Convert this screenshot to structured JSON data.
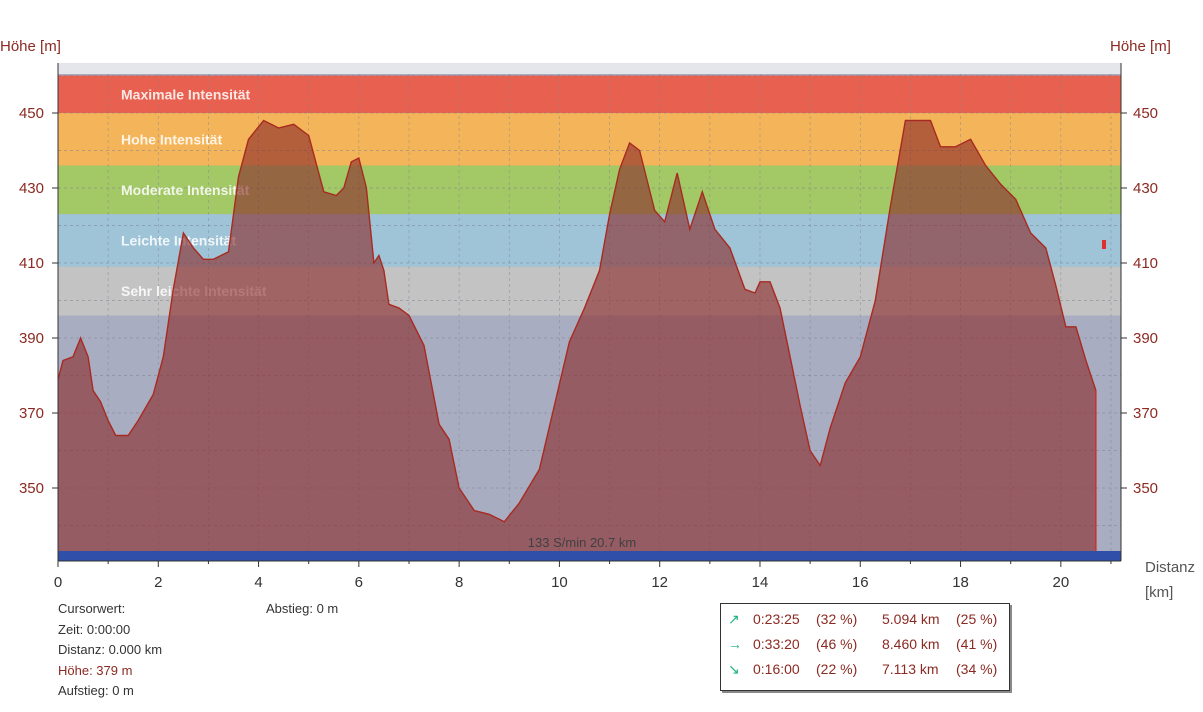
{
  "chart_data": {
    "type": "area",
    "ylabel_left": "Höhe [m]",
    "ylabel_right": "Höhe [m]",
    "xlabel": "Distanz",
    "xunit": "[km]",
    "xlim": [
      0,
      21.2
    ],
    "ylim": [
      332,
      462
    ],
    "x_ticks": [
      0,
      2,
      4,
      6,
      8,
      10,
      12,
      14,
      16,
      18,
      20
    ],
    "y_ticks": [
      350,
      370,
      390,
      410,
      430,
      450
    ],
    "grid": true,
    "zones": [
      {
        "name": "Maximale Intensität",
        "min": 450,
        "max": 460,
        "color": "#e8604f"
      },
      {
        "name": "Hohe Intensität",
        "min": 436,
        "max": 450,
        "color": "#f4b55a"
      },
      {
        "name": "Moderate Intensität",
        "min": 423,
        "max": 436,
        "color": "#a3c866"
      },
      {
        "name": "Leichte Intensität",
        "min": 409,
        "max": 423,
        "color": "#9fc4d8"
      },
      {
        "name": "Sehr leichte Intensität",
        "min": 396,
        "max": 409,
        "color": "#c3c3c3"
      }
    ],
    "series": [
      {
        "x": [
          0,
          0.1,
          0.3,
          0.45,
          0.6,
          0.7,
          0.85,
          1.0,
          1.15,
          1.4,
          1.6,
          1.9,
          2.1,
          2.3,
          2.5,
          2.7,
          2.9,
          3.1,
          3.4,
          3.6,
          3.8,
          4.1,
          4.4,
          4.7,
          5.0,
          5.3,
          5.55,
          5.7,
          5.85,
          6.0,
          6.15,
          6.3,
          6.4,
          6.5,
          6.6,
          6.8,
          7.0,
          7.3,
          7.6,
          7.8,
          8.0,
          8.3,
          8.6,
          8.9,
          9.2,
          9.6,
          9.9,
          10.2,
          10.5,
          10.8,
          11.0,
          11.2,
          11.4,
          11.6,
          11.9,
          12.1,
          12.35,
          12.6,
          12.85,
          13.1,
          13.4,
          13.7,
          13.9,
          14.0,
          14.2,
          14.4,
          14.6,
          14.8,
          15.0,
          15.2,
          15.4,
          15.7,
          16.0,
          16.3,
          16.6,
          16.9,
          17.1,
          17.4,
          17.6,
          17.9,
          18.2,
          18.5,
          18.8,
          19.1,
          19.4,
          19.7,
          19.9,
          20.1,
          20.3,
          20.5,
          20.7
        ],
        "y": [
          379,
          384,
          385,
          390,
          385,
          376,
          373,
          368,
          364,
          364,
          368,
          375,
          385,
          403,
          418,
          414,
          411,
          411,
          413,
          433,
          443,
          448,
          446,
          447,
          444,
          429,
          428,
          430,
          437,
          438,
          430,
          410,
          412,
          408,
          399,
          398,
          396,
          388,
          367,
          363,
          350,
          344,
          343,
          341,
          346,
          355,
          372,
          389,
          398,
          408,
          423,
          435,
          442,
          440,
          424,
          421,
          434,
          419,
          429,
          419,
          414,
          403,
          402,
          405,
          405,
          398,
          385,
          372,
          360,
          356,
          366,
          378,
          385,
          400,
          425,
          448,
          448,
          448,
          441,
          441,
          443,
          436,
          431,
          427,
          418,
          414,
          404,
          393,
          393,
          384,
          376
        ]
      }
    ],
    "cursor_label": "133 S/min 20.7 km",
    "colors": {
      "profile_fill": "#8b2a2a",
      "profile_line": "#a82a20",
      "plot_bg": "#a9adc2",
      "bottom_bar": "#2f4fa8",
      "axis_text": "#8b2a22"
    }
  },
  "info": {
    "cursor_label": "Cursorwert:",
    "time": "Zeit: 0:00:00",
    "distance": "Distanz: 0.000 km",
    "height": "Höhe: 379 m",
    "ascent": "Aufstieg: 0 m",
    "descent": "Abstieg: 0 m"
  },
  "summary": [
    {
      "arrow": "↗",
      "time": "0:23:25",
      "time_pct": "(32 %)",
      "dist": "5.094 km",
      "dist_pct": "(25 %)"
    },
    {
      "arrow": "→",
      "time": "0:33:20",
      "time_pct": "(46 %)",
      "dist": "8.460 km",
      "dist_pct": "(41 %)"
    },
    {
      "arrow": "↘",
      "time": "0:16:00",
      "time_pct": "(22 %)",
      "dist": "7.113 km",
      "dist_pct": "(34 %)"
    }
  ]
}
